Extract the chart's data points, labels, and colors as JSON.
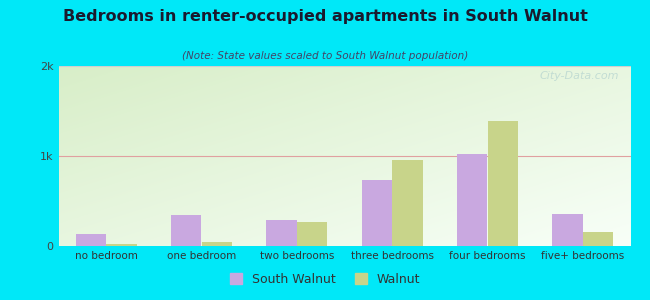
{
  "title": "Bedrooms in renter-occupied apartments in South Walnut",
  "subtitle": "(Note: State values scaled to South Walnut population)",
  "categories": [
    "no bedroom",
    "one bedroom",
    "two bedrooms",
    "three bedrooms",
    "four bedrooms",
    "five+ bedrooms"
  ],
  "south_walnut": [
    130,
    340,
    290,
    730,
    1020,
    360
  ],
  "walnut": [
    18,
    50,
    270,
    960,
    1390,
    155
  ],
  "ylim": [
    0,
    2000
  ],
  "yticks": [
    0,
    1000,
    2000
  ],
  "ytick_labels": [
    "0",
    "1k",
    "2k"
  ],
  "color_sw": "#c9a8e0",
  "color_walnut": "#c8d48a",
  "bg_outer": "#00e8f8",
  "grid_color_2k": "#d0d0d0",
  "grid_color_1k": "#e0a0a0",
  "legend_sw": "South Walnut",
  "legend_walnut": "Walnut",
  "bar_width": 0.32,
  "watermark": "City-Data.com"
}
